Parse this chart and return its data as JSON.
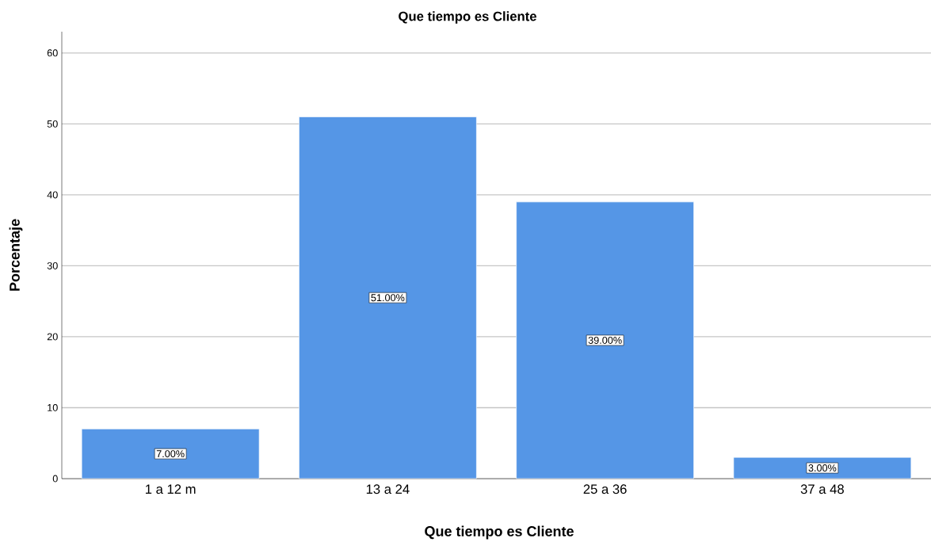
{
  "chart_data": {
    "type": "bar",
    "title": "Que tiempo es Cliente",
    "xlabel": "Que tiempo es Cliente",
    "ylabel": "Porcentaje",
    "categories": [
      "1 a 12 m",
      "13 a 24",
      "25 a 36",
      "37 a 48"
    ],
    "values": [
      7,
      51,
      39,
      3
    ],
    "value_labels": [
      "7.00%",
      "51.00%",
      "39.00%",
      "3.00%"
    ],
    "color": "#5596e6",
    "ylim": [
      0,
      63
    ],
    "yticks": [
      0,
      10,
      20,
      30,
      40,
      50,
      60
    ],
    "grid": "y"
  }
}
